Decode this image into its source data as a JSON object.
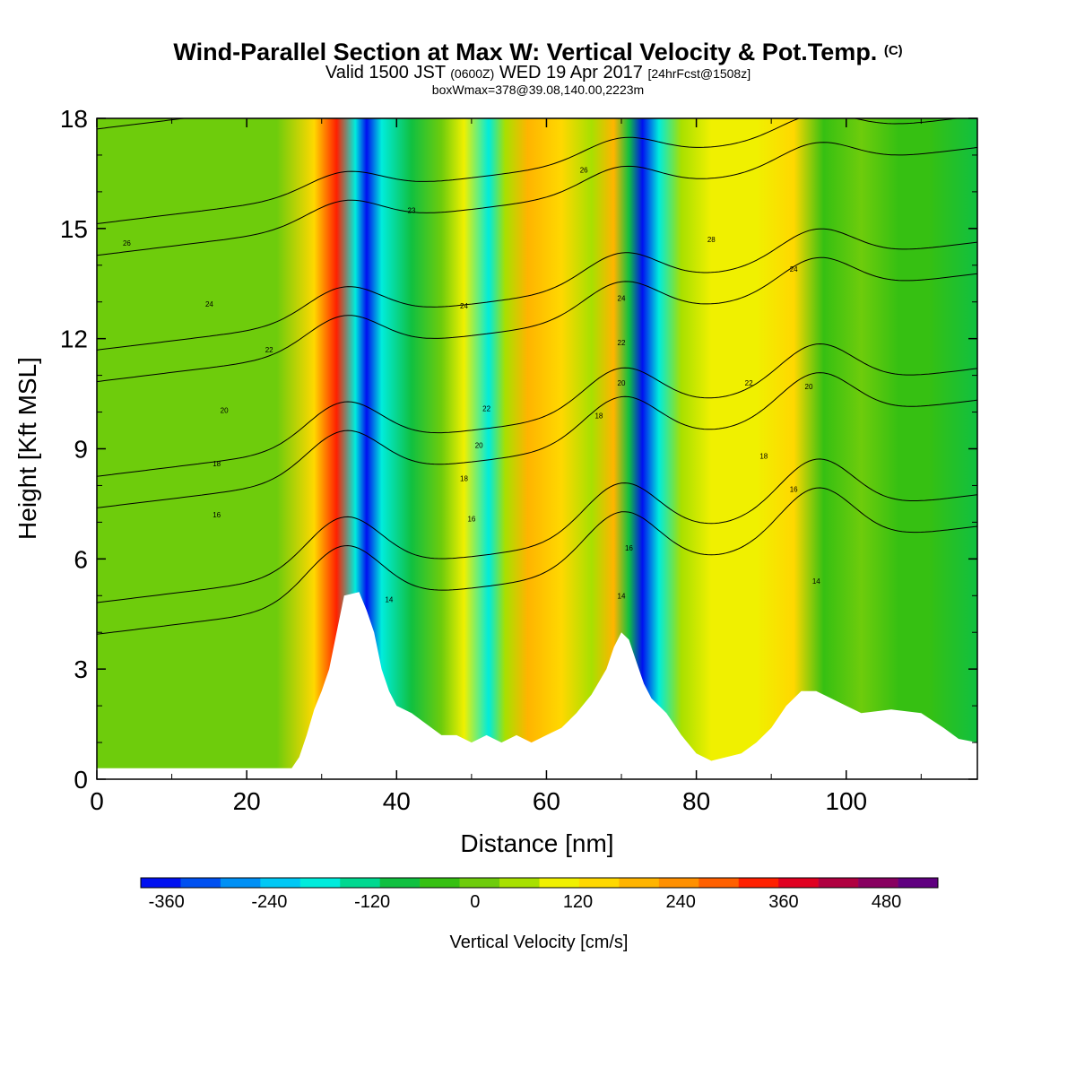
{
  "title": {
    "main": "Wind-Parallel Section at Max W: Vertical Velocity & Pot.Temp.",
    "copyright_mark": "(C)",
    "valid_prefix": "Valid 1500 JST",
    "zulu": "(0600Z)",
    "valid_date": "WED 19 Apr 2017",
    "forecast_info": "[24hrFcst@1508z]",
    "box_info": "boxWmax=378@39.08,140.00,2223m"
  },
  "chart_data": {
    "type": "heatmap",
    "xlabel": "Distance [nm]",
    "ylabel": "Height [Kft MSL]",
    "xlim": [
      0,
      117.5
    ],
    "ylim": [
      0,
      18
    ],
    "x_ticks": [
      "0",
      "20",
      "40",
      "60",
      "80",
      "100"
    ],
    "y_ticks": [
      "0",
      "3",
      "6",
      "9",
      "12",
      "15",
      "18"
    ],
    "colorbar": {
      "label": "Vertical Velocity [cm/s]",
      "tick_labels": [
        "-360",
        "-240",
        "-120",
        "0",
        "120",
        "240",
        "360",
        "480"
      ],
      "range": [
        -390,
        540
      ],
      "colors": [
        "#0010f0",
        "#0050f0",
        "#0090f5",
        "#00c8f5",
        "#00ecdc",
        "#00d890",
        "#10c040",
        "#36c012",
        "#6ecc0c",
        "#a8e000",
        "#f0f000",
        "#ffd800",
        "#ffb400",
        "#ff9000",
        "#ff6000",
        "#ff2000",
        "#e00020",
        "#b00040",
        "#880060",
        "#600080"
      ]
    },
    "velocity_bands": [
      {
        "x": 0,
        "w": -5
      },
      {
        "x": 24,
        "w": -5
      },
      {
        "x": 29,
        "w": 150
      },
      {
        "x": 32,
        "w": 330
      },
      {
        "x": 34.5,
        "w": -200
      },
      {
        "x": 36,
        "w": -345
      },
      {
        "x": 38,
        "w": -170
      },
      {
        "x": 42,
        "w": -80
      },
      {
        "x": 46,
        "w": 15
      },
      {
        "x": 49,
        "w": 110
      },
      {
        "x": 52.3,
        "w": -180
      },
      {
        "x": 54.5,
        "w": 30
      },
      {
        "x": 57.5,
        "w": 190
      },
      {
        "x": 62,
        "w": 160
      },
      {
        "x": 66,
        "w": 70
      },
      {
        "x": 69,
        "w": 200
      },
      {
        "x": 71,
        "w": -100
      },
      {
        "x": 72.8,
        "w": -370
      },
      {
        "x": 75,
        "w": -200
      },
      {
        "x": 78,
        "w": 60
      },
      {
        "x": 82,
        "w": 120
      },
      {
        "x": 88,
        "w": 80
      },
      {
        "x": 93,
        "w": 140
      },
      {
        "x": 97,
        "w": -40
      },
      {
        "x": 102,
        "w": 20
      },
      {
        "x": 107,
        "w": -60
      },
      {
        "x": 111,
        "w": -20
      },
      {
        "x": 117.5,
        "w": -80
      }
    ],
    "terrain": [
      [
        0,
        0.3
      ],
      [
        26,
        0.3
      ],
      [
        27,
        0.6
      ],
      [
        28,
        1.2
      ],
      [
        29,
        1.9
      ],
      [
        30,
        2.4
      ],
      [
        31,
        3.0
      ],
      [
        32,
        4.0
      ],
      [
        33,
        5.0
      ],
      [
        35,
        5.1
      ],
      [
        36,
        4.6
      ],
      [
        37,
        4.0
      ],
      [
        38,
        3.0
      ],
      [
        39,
        2.4
      ],
      [
        40,
        2.0
      ],
      [
        42,
        1.8
      ],
      [
        44,
        1.5
      ],
      [
        46,
        1.2
      ],
      [
        48,
        1.2
      ],
      [
        50,
        1.0
      ],
      [
        52,
        1.2
      ],
      [
        54,
        1.0
      ],
      [
        56,
        1.2
      ],
      [
        58,
        1.0
      ],
      [
        60,
        1.2
      ],
      [
        62,
        1.4
      ],
      [
        64,
        1.8
      ],
      [
        66,
        2.3
      ],
      [
        68,
        3.0
      ],
      [
        69,
        3.6
      ],
      [
        70,
        4.0
      ],
      [
        71,
        3.8
      ],
      [
        72,
        3.2
      ],
      [
        73,
        2.6
      ],
      [
        74,
        2.2
      ],
      [
        76,
        1.8
      ],
      [
        78,
        1.2
      ],
      [
        80,
        0.7
      ],
      [
        82,
        0.5
      ],
      [
        84,
        0.6
      ],
      [
        86,
        0.7
      ],
      [
        88,
        1.0
      ],
      [
        90,
        1.4
      ],
      [
        92,
        2.0
      ],
      [
        94,
        2.4
      ],
      [
        96,
        2.4
      ],
      [
        98,
        2.2
      ],
      [
        100,
        2.0
      ],
      [
        102,
        1.8
      ],
      [
        106,
        1.9
      ],
      [
        110,
        1.8
      ],
      [
        113,
        1.4
      ],
      [
        115,
        1.1
      ],
      [
        117.5,
        1.0
      ]
    ],
    "theta_levels": [
      14,
      16,
      18,
      20,
      22,
      24,
      26
    ],
    "contour_labels": [
      {
        "text": "26",
        "x": 4,
        "y": 14.6
      },
      {
        "text": "24",
        "x": 15,
        "y": 12.95
      },
      {
        "text": "22",
        "x": 23,
        "y": 11.7
      },
      {
        "text": "20",
        "x": 17,
        "y": 10.05
      },
      {
        "text": "18",
        "x": 16,
        "y": 8.6
      },
      {
        "text": "16",
        "x": 16,
        "y": 7.2
      },
      {
        "text": "14",
        "x": 39,
        "y": 4.9
      },
      {
        "text": "26",
        "x": 65,
        "y": 16.6
      },
      {
        "text": "23",
        "x": 42,
        "y": 15.5
      },
      {
        "text": "24",
        "x": 49,
        "y": 12.9
      },
      {
        "text": "22",
        "x": 52,
        "y": 10.1
      },
      {
        "text": "20",
        "x": 51,
        "y": 9.1
      },
      {
        "text": "18",
        "x": 49,
        "y": 8.2
      },
      {
        "text": "16",
        "x": 50,
        "y": 7.1
      },
      {
        "text": "24",
        "x": 70,
        "y": 13.1
      },
      {
        "text": "22",
        "x": 70,
        "y": 11.9
      },
      {
        "text": "20",
        "x": 70,
        "y": 10.8
      },
      {
        "text": "18",
        "x": 67,
        "y": 9.9
      },
      {
        "text": "16",
        "x": 71,
        "y": 6.3
      },
      {
        "text": "14",
        "x": 70,
        "y": 5.0
      },
      {
        "text": "28",
        "x": 82,
        "y": 14.7
      },
      {
        "text": "24",
        "x": 93,
        "y": 13.9
      },
      {
        "text": "22",
        "x": 87,
        "y": 10.8
      },
      {
        "text": "20",
        "x": 95,
        "y": 10.7
      },
      {
        "text": "18",
        "x": 89,
        "y": 8.8
      },
      {
        "text": "16",
        "x": 93,
        "y": 7.9
      },
      {
        "text": "14",
        "x": 96,
        "y": 5.4
      }
    ]
  }
}
